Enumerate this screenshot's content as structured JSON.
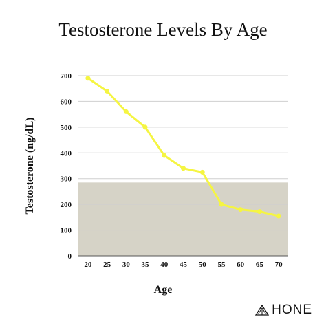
{
  "chart_data": {
    "type": "line",
    "title": "Testosterone Levels By Age",
    "xlabel": "Age",
    "ylabel": "Testosterone (ng/dL)",
    "x": [
      20,
      25,
      30,
      35,
      40,
      45,
      50,
      55,
      60,
      65,
      70
    ],
    "values": [
      690,
      640,
      560,
      500,
      390,
      340,
      325,
      200,
      180,
      172,
      155
    ],
    "ylim": [
      0,
      700
    ],
    "yticks": [
      0,
      100,
      200,
      300,
      400,
      500,
      600,
      700
    ],
    "grid": true,
    "shaded_band": {
      "from": 0,
      "to": 285,
      "color": "#d6d3c7"
    },
    "line_color": "#f5f542",
    "legend": "none"
  },
  "brand": {
    "name": "HONE",
    "icon": "triangle-logo-icon"
  }
}
